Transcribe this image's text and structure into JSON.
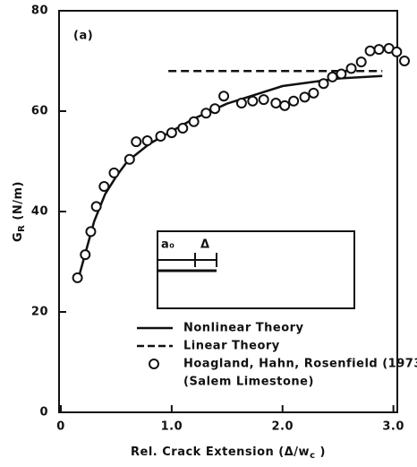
{
  "chart_data": {
    "type": "line",
    "panel_label": "(a)",
    "ylabel": [
      "G",
      "R",
      " (N/m)"
    ],
    "xlabel": [
      "Rel. Crack Extension  (Δ/w",
      "c",
      " )"
    ],
    "xlim": [
      0,
      3.1
    ],
    "ylim": [
      0,
      80
    ],
    "xticks": [
      0,
      {
        "value": 1,
        "label": "1.0"
      },
      {
        "value": 2,
        "label": "2.0"
      },
      {
        "value": 3,
        "label": "3.0"
      }
    ],
    "yticks": [
      0,
      20,
      40,
      60,
      80
    ],
    "inset_labels": [
      "a₀",
      "Δ"
    ],
    "legend_note": "(Salem Limestone)",
    "series": [
      {
        "name": "Nonlinear Theory",
        "style": "solid",
        "color": "#111",
        "x": [
          0.15,
          0.2,
          0.3,
          0.4,
          0.5,
          0.6,
          0.8,
          1.0,
          1.2,
          1.5,
          2.0,
          2.5,
          2.9
        ],
        "values": [
          26,
          30,
          38,
          43.5,
          47,
          50,
          53.5,
          56,
          58.5,
          61.5,
          65,
          66.5,
          67
        ]
      },
      {
        "name": "Linear Theory",
        "style": "dashed",
        "color": "#111",
        "x": [
          0.97,
          2.9
        ],
        "values": [
          68,
          68
        ]
      },
      {
        "name": "Hoagland, Hahn, Rosenfield (1973)",
        "style": "markers",
        "color": "#111",
        "x": [
          0.15,
          0.22,
          0.27,
          0.32,
          0.39,
          0.48,
          0.62,
          0.68,
          0.78,
          0.9,
          1.0,
          1.1,
          1.2,
          1.31,
          1.39,
          1.47,
          1.63,
          1.73,
          1.83,
          1.94,
          2.02,
          2.1,
          2.2,
          2.28,
          2.37,
          2.45,
          2.53,
          2.62,
          2.71,
          2.79,
          2.87,
          2.96,
          3.03,
          3.1
        ],
        "values": [
          26.8,
          31.4,
          36,
          41,
          45,
          47.7,
          50.4,
          53.9,
          54.1,
          55,
          55.7,
          56.6,
          57.9,
          59.6,
          60.5,
          63,
          61.6,
          62,
          62.3,
          61.6,
          61.1,
          62,
          62.8,
          63.6,
          65.5,
          66.8,
          67.4,
          68.5,
          69.8,
          72,
          72.3,
          72.5,
          71.8,
          70
        ]
      }
    ]
  }
}
